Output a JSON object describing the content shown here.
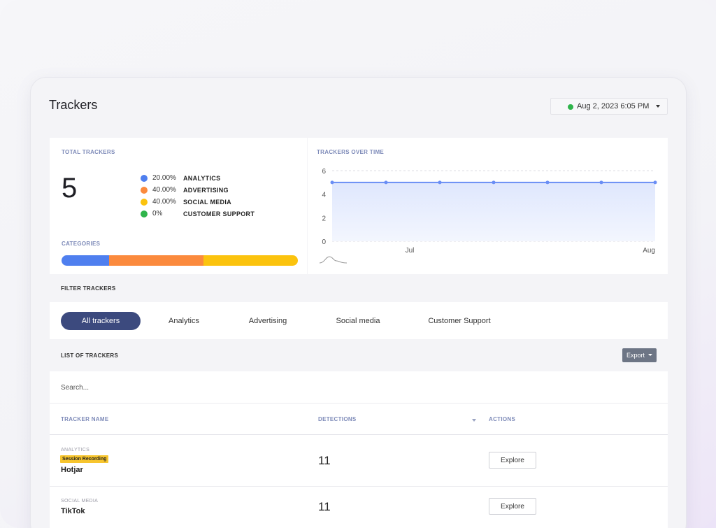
{
  "page": {
    "title": "Trackers"
  },
  "date_picker": {
    "value": "Aug 2, 2023 6:05 PM",
    "status_color": "#2fb44b"
  },
  "total_trackers": {
    "label": "TOTAL TRACKERS",
    "count": "5",
    "legend": [
      {
        "pct": "20.00%",
        "name": "ANALYTICS",
        "color": "#4f7fef"
      },
      {
        "pct": "40.00%",
        "name": "ADVERTISING",
        "color": "#fb8a3d"
      },
      {
        "pct": "40.00%",
        "name": "SOCIAL MEDIA",
        "color": "#fbc30e"
      },
      {
        "pct": "0%",
        "name": "CUSTOMER SUPPORT",
        "color": "#2fb44b"
      }
    ],
    "categories_label": "CATEGORIES",
    "category_fractions": [
      0.2,
      0.4,
      0.4,
      0
    ]
  },
  "chart_data": {
    "type": "area",
    "title": "TRACKERS OVER TIME",
    "xlabel": "",
    "ylabel": "",
    "x_tick_labels": [
      "Jul",
      "Aug"
    ],
    "y_ticks": [
      "6",
      "4",
      "2",
      "0"
    ],
    "ylim": [
      0,
      6
    ],
    "series": [
      {
        "values": [
          5,
          5,
          5,
          5,
          5,
          5,
          5
        ],
        "color": "#6a8ef5"
      }
    ],
    "grid": true
  },
  "filter": {
    "label": "FILTER TRACKERS",
    "buttons": [
      "All trackers",
      "Analytics",
      "Advertising",
      "Social media",
      "Customer Support"
    ],
    "active": "All trackers"
  },
  "list": {
    "label": "LIST OF TRACKERS",
    "export_label": "Export",
    "search_placeholder": "Search...",
    "columns": [
      "TRACKER NAME",
      "DETECTIONS",
      "ACTIONS"
    ],
    "rows": [
      {
        "category": "ANALYTICS",
        "tag": "Session Recording",
        "name": "Hotjar",
        "detections": "11",
        "action": "Explore"
      },
      {
        "category": "SOCIAL MEDIA",
        "tag": "",
        "name": "TikTok",
        "detections": "11",
        "action": "Explore"
      }
    ]
  }
}
